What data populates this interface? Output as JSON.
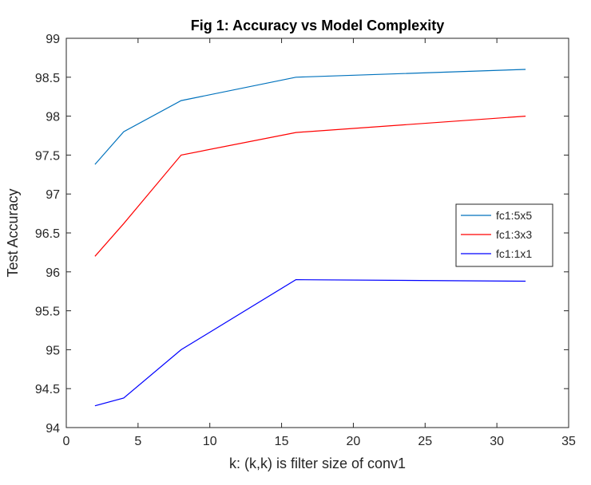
{
  "chart_data": {
    "type": "line",
    "title": "Fig 1: Accuracy vs Model Complexity",
    "xlabel": "k: (k,k) is filter size of conv1",
    "ylabel": "Test Accuracy",
    "xlim": [
      0,
      35
    ],
    "ylim": [
      94,
      99
    ],
    "xticks": [
      0,
      5,
      10,
      15,
      20,
      25,
      30,
      35
    ],
    "yticks": [
      94,
      94.5,
      95,
      95.5,
      96,
      96.5,
      97,
      97.5,
      98,
      98.5,
      99
    ],
    "x": [
      2,
      4,
      8,
      16,
      32
    ],
    "series": [
      {
        "name": "fc1:5x5",
        "color": "#0072BD",
        "values": [
          97.38,
          97.8,
          98.2,
          98.5,
          98.6
        ]
      },
      {
        "name": "fc1:3x3",
        "color": "#FF0000",
        "values": [
          96.2,
          96.62,
          97.5,
          97.79,
          98.0
        ]
      },
      {
        "name": "fc1:1x1",
        "color": "#0000FF",
        "values": [
          94.28,
          94.38,
          95.0,
          95.9,
          95.88
        ]
      }
    ],
    "legend_position": "right",
    "grid": false
  }
}
